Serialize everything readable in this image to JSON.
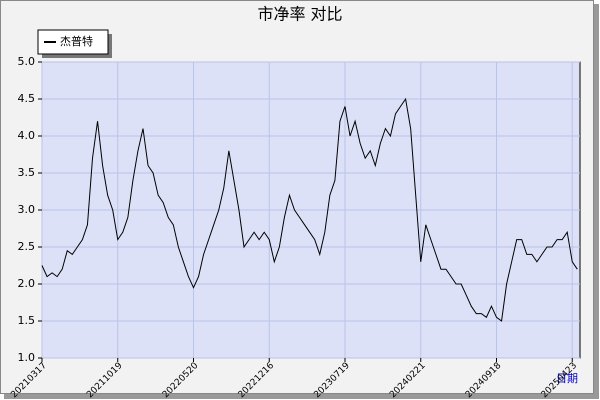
{
  "chart_data": {
    "type": "line",
    "title": "市净率  对比",
    "x_label": "日期",
    "categories": [
      "20210317",
      null,
      null,
      null,
      null,
      null,
      null,
      null,
      null,
      null,
      null,
      null,
      null,
      null,
      null,
      "20211019",
      null,
      null,
      null,
      null,
      null,
      null,
      null,
      null,
      null,
      null,
      null,
      null,
      null,
      null,
      "20220520",
      null,
      null,
      null,
      null,
      null,
      null,
      null,
      null,
      null,
      null,
      null,
      null,
      null,
      null,
      "20221216",
      null,
      null,
      null,
      null,
      null,
      null,
      null,
      null,
      null,
      null,
      null,
      null,
      null,
      null,
      "20230719",
      null,
      null,
      null,
      null,
      null,
      null,
      null,
      null,
      null,
      null,
      null,
      null,
      null,
      null,
      "20240221",
      null,
      null,
      null,
      null,
      null,
      null,
      null,
      null,
      null,
      null,
      null,
      null,
      null,
      null,
      "20240918",
      null,
      null,
      null,
      null,
      null,
      null,
      null,
      null,
      null,
      null,
      null,
      null,
      null,
      null,
      "20250423",
      null
    ],
    "series": [
      {
        "name": "杰普特",
        "color": "#000000",
        "values": [
          2.25,
          2.1,
          2.15,
          2.1,
          2.2,
          2.45,
          2.4,
          2.5,
          2.6,
          2.8,
          3.7,
          4.2,
          3.6,
          3.2,
          3.0,
          2.6,
          2.7,
          2.9,
          3.4,
          3.8,
          4.1,
          3.6,
          3.5,
          3.2,
          3.1,
          2.9,
          2.8,
          2.5,
          2.3,
          2.1,
          1.95,
          2.1,
          2.4,
          2.6,
          2.8,
          3.0,
          3.3,
          3.8,
          3.4,
          3.0,
          2.5,
          2.6,
          2.7,
          2.6,
          2.7,
          2.6,
          2.3,
          2.5,
          2.9,
          3.2,
          3.0,
          2.9,
          2.8,
          2.7,
          2.6,
          2.4,
          2.7,
          3.2,
          3.4,
          4.2,
          4.4,
          4.0,
          4.2,
          3.9,
          3.7,
          3.8,
          3.6,
          3.9,
          4.1,
          4.0,
          4.3,
          4.4,
          4.5,
          4.1,
          3.2,
          2.3,
          2.8,
          2.6,
          2.4,
          2.2,
          2.2,
          2.1,
          2.0,
          2.0,
          1.85,
          1.7,
          1.6,
          1.6,
          1.55,
          1.7,
          1.55,
          1.5,
          2.0,
          2.3,
          2.6,
          2.6,
          2.4,
          2.4,
          2.3,
          2.4,
          2.5,
          2.5,
          2.6,
          2.6,
          2.7,
          2.3,
          2.2
        ]
      }
    ],
    "ylim": [
      1,
      5
    ],
    "yticks": [
      {
        "value": 1,
        "label": "1.0"
      },
      1.5,
      {
        "value": 2,
        "label": "2.0"
      },
      2.5,
      {
        "value": 3,
        "label": "3.0"
      },
      3.5,
      {
        "value": 4,
        "label": "4.0"
      },
      4.5,
      {
        "value": 5,
        "label": "5.0"
      }
    ],
    "grid": true
  }
}
